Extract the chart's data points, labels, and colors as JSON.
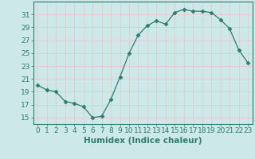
{
  "x": [
    0,
    1,
    2,
    3,
    4,
    5,
    6,
    7,
    8,
    9,
    10,
    11,
    12,
    13,
    14,
    15,
    16,
    17,
    18,
    19,
    20,
    21,
    22,
    23
  ],
  "y": [
    20.0,
    19.3,
    19.0,
    17.5,
    17.2,
    16.7,
    15.0,
    15.2,
    17.8,
    21.3,
    25.0,
    27.8,
    29.3,
    30.0,
    29.5,
    31.3,
    31.8,
    31.5,
    31.5,
    31.3,
    30.2,
    28.8,
    25.5,
    23.5
  ],
  "line_color": "#2e7d6e",
  "marker": "D",
  "marker_size": 2.5,
  "bg_color": "#cce8e8",
  "grid_color": "#e8c8c8",
  "xlabel": "Humidex (Indice chaleur)",
  "ylim": [
    14.0,
    33.0
  ],
  "xlim": [
    -0.5,
    23.5
  ],
  "yticks": [
    15,
    17,
    19,
    21,
    23,
    25,
    27,
    29,
    31
  ],
  "xticks": [
    0,
    1,
    2,
    3,
    4,
    5,
    6,
    7,
    8,
    9,
    10,
    11,
    12,
    13,
    14,
    15,
    16,
    17,
    18,
    19,
    20,
    21,
    22,
    23
  ],
  "xtick_labels": [
    "0",
    "1",
    "2",
    "3",
    "4",
    "5",
    "6",
    "7",
    "8",
    "9",
    "10",
    "11",
    "12",
    "13",
    "14",
    "15",
    "16",
    "17",
    "18",
    "19",
    "20",
    "21",
    "22",
    "23"
  ],
  "tick_color": "#2e7d6e",
  "label_fontsize": 7.5,
  "tick_fontsize": 6.5,
  "spine_color": "#2e7d6e"
}
